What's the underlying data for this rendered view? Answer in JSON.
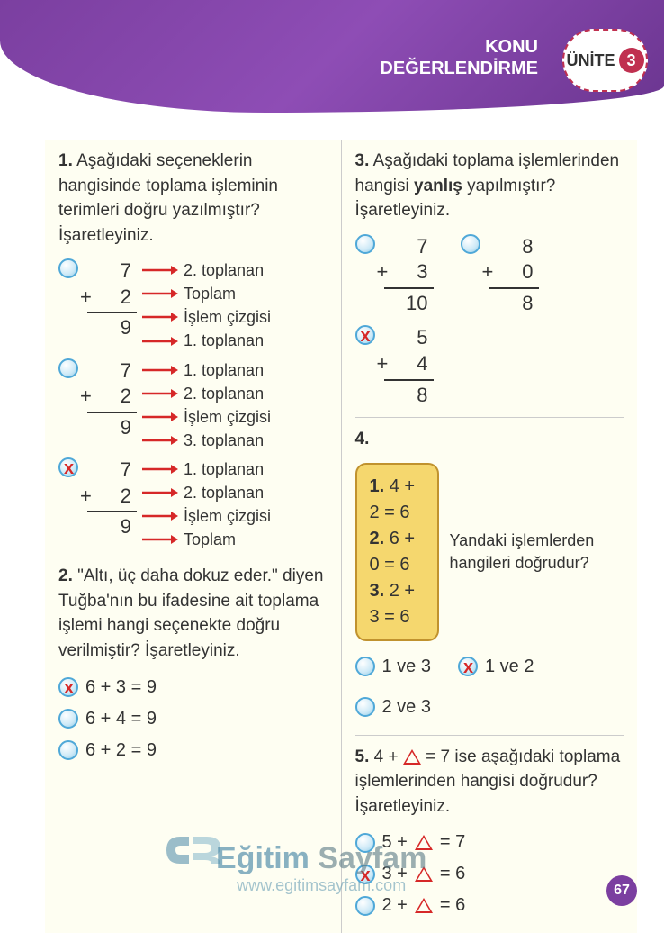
{
  "header": {
    "line1": "KONU",
    "line2": "DEĞERLENDİRME",
    "unite_label": "ÜNİTE",
    "unite_num": "3"
  },
  "q1": {
    "num": "1.",
    "text": "Aşağıdaki seçeneklerin hangisinde toplama işleminin terimleri doğru yazılmıştır? İşaretleyiniz.",
    "options": [
      {
        "marked": false,
        "a": "7",
        "b": "2",
        "sum": "9",
        "labels": [
          "2. toplanan",
          "Toplam",
          "İşlem çizgisi",
          "1. toplanan"
        ]
      },
      {
        "marked": false,
        "a": "7",
        "b": "2",
        "sum": "9",
        "labels": [
          "1. toplanan",
          "2. toplanan",
          "İşlem çizgisi",
          "3. toplanan"
        ]
      },
      {
        "marked": true,
        "a": "7",
        "b": "2",
        "sum": "9",
        "labels": [
          "1. toplanan",
          "2. toplanan",
          "İşlem çizgisi",
          "Toplam"
        ]
      }
    ]
  },
  "q2": {
    "num": "2.",
    "text": "\"Altı, üç daha dokuz eder.\" diyen Tuğba'nın bu ifadesine ait toplama işlemi hangi seçenekte doğru verilmiştir? İşaretleyiniz.",
    "options": [
      {
        "marked": true,
        "expr": "6 + 3 = 9"
      },
      {
        "marked": false,
        "expr": "6 + 4 = 9"
      },
      {
        "marked": false,
        "expr": "6 + 2 = 9"
      }
    ]
  },
  "q3": {
    "num": "3.",
    "text_pre": "Aşağıdaki toplama işlemlerinden hangisi ",
    "text_bold": "yanlış",
    "text_post": " yapılmıştır? İşaretleyiniz.",
    "options": [
      {
        "marked": false,
        "a": "7",
        "b": "3",
        "sum": "10"
      },
      {
        "marked": false,
        "a": "8",
        "b": "0",
        "sum": "8"
      },
      {
        "marked": true,
        "a": "5",
        "b": "4",
        "sum": "8"
      }
    ]
  },
  "q4": {
    "num": "4.",
    "box_lines": [
      "1. 4 + 2 = 6",
      "2. 6 + 0 = 6",
      "3. 2 + 3 = 6"
    ],
    "side_text": "Yandaki işlemlerden hangileri doğrudur?",
    "options": [
      {
        "marked": false,
        "label": "1 ve 3"
      },
      {
        "marked": true,
        "label": "1 ve 2"
      },
      {
        "marked": false,
        "label": "2 ve 3"
      }
    ]
  },
  "q5": {
    "num": "5.",
    "text_pre": "4 + ",
    "text_mid": " = 7 ise aşağıdaki toplama işlemlerinden hangisi doğrudur? İşaretleyiniz.",
    "options": [
      {
        "marked": false,
        "left": "5 + ",
        "right": " = 7"
      },
      {
        "marked": true,
        "left": "3 + ",
        "right": " = 6"
      },
      {
        "marked": false,
        "left": "2 + ",
        "right": " = 6"
      }
    ]
  },
  "watermark": {
    "brand_pre": "Eğitim",
    "brand": "Sayfam",
    "url": "www.egitimsayfam.com"
  },
  "page_number": "67"
}
